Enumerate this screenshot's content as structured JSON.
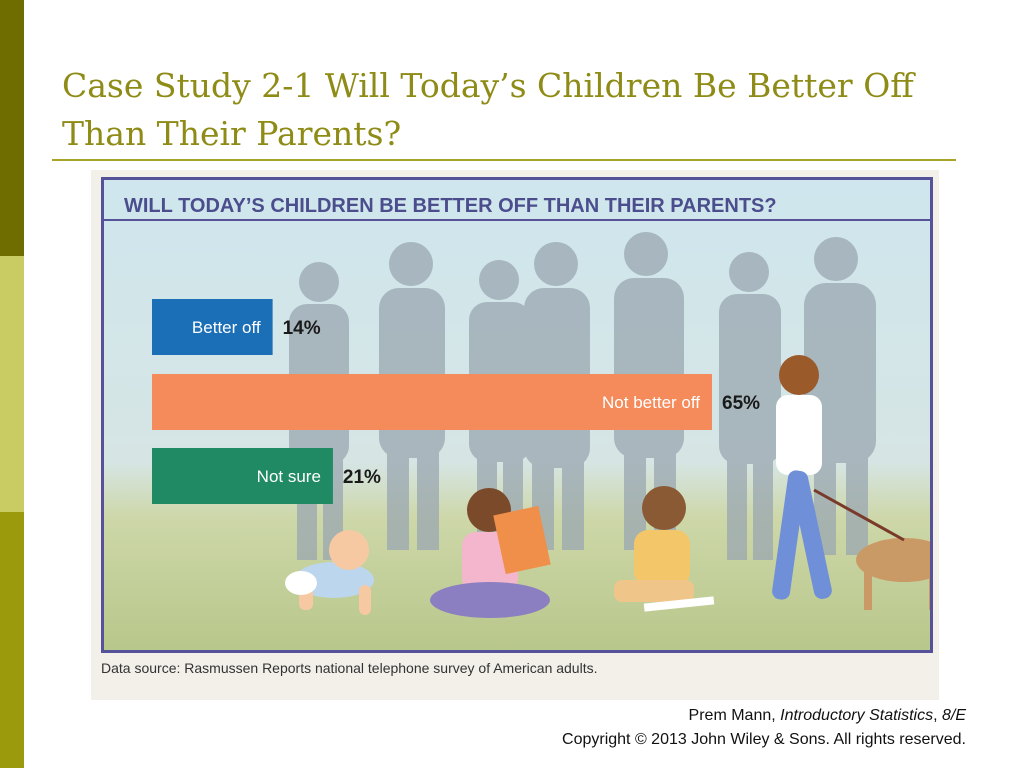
{
  "slide": {
    "title": "Case Study 2-1 Will Today’s Children Be Better Off Than Their Parents?",
    "credit_author": "Prem Mann, ",
    "credit_book": "Introductory Statistics",
    "credit_sep": ", ",
    "credit_edition": "8/E",
    "copyright": "Copyright © 2013 John Wiley & Sons. All rights reserved."
  },
  "colors": {
    "sidebar_top": "#6f6c00",
    "sidebar_mid": "#c9cb63",
    "sidebar_bottom": "#9a9a0c",
    "title": "#8e8b16",
    "frame": "#56529a",
    "better_off": "#1a6fb6",
    "not_better_off": "#f58a5a",
    "not_sure": "#1f8a64"
  },
  "chart_data": {
    "type": "bar",
    "orientation": "horizontal",
    "title": "WILL TODAY’S CHILDREN BE BETTER OFF THAN THEIR PARENTS?",
    "categories": [
      "Better off",
      "Not better off",
      "Not sure"
    ],
    "values": [
      14,
      65,
      21
    ],
    "value_labels": [
      "14%",
      "65%",
      "21%"
    ],
    "unit": "%",
    "bar_colors": [
      "#1a6fb6",
      "#f58a5a",
      "#1f8a64"
    ],
    "xlim": [
      0,
      65
    ],
    "grid": false,
    "legend": "none",
    "source": "Data source: Rasmussen Reports national telephone survey of American adults."
  }
}
